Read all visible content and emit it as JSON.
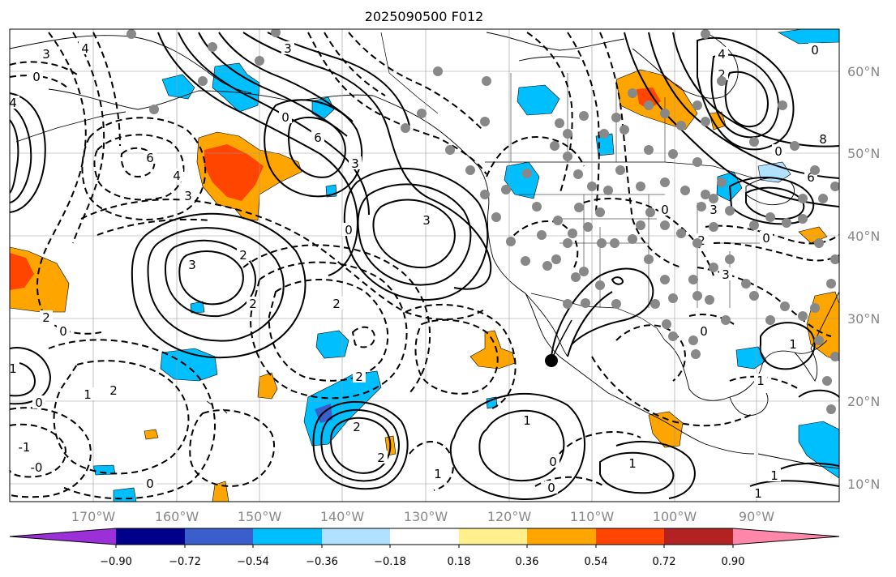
{
  "title": "2025090500 F012",
  "longitude_labels": [
    "170°W",
    "160°W",
    "150°W",
    "140°W",
    "130°W",
    "120°W",
    "110°W",
    "100°W",
    "90°W"
  ],
  "latitude_labels": [
    "60°N",
    "50°N",
    "40°N",
    "30°N",
    "20°N",
    "10°N"
  ],
  "colorbar": {
    "tick_labels": [
      "−0.90",
      "−0.72",
      "−0.54",
      "−0.36",
      "−0.18",
      "0.18",
      "0.36",
      "0.54",
      "0.72",
      "0.90"
    ],
    "colors": [
      "#9b30d9",
      "#00008b",
      "#3a5fcd",
      "#00bfff",
      "#b0e2ff",
      "#ffffff",
      "#fff08c",
      "#ffa500",
      "#ff4500",
      "#b22222",
      "#ff88aa"
    ]
  },
  "contour_labels": [
    "3",
    "4",
    "0",
    "4",
    "6",
    "6",
    "4",
    "3",
    "3",
    "0",
    "3",
    "2",
    "3",
    "2",
    "2",
    "2",
    "0",
    "2",
    "1",
    "0",
    "1",
    "-1",
    "-0",
    "0",
    "2",
    "2",
    "2",
    "1",
    "0",
    "1",
    "0",
    "3",
    "4",
    "2",
    "0",
    "8",
    "6",
    "3",
    "0",
    "1",
    "0",
    "2",
    "3",
    "0",
    "1",
    "1",
    "1",
    "0",
    "0",
    "1"
  ],
  "shading_colors": {
    "orange": "#ffa500",
    "red_orange": "#ff4500",
    "cyan": "#00bfff",
    "light_blue": "#b0e2ff",
    "blue": "#3a5fcd"
  },
  "station_color": "#888888",
  "marker_color": "#000000"
}
